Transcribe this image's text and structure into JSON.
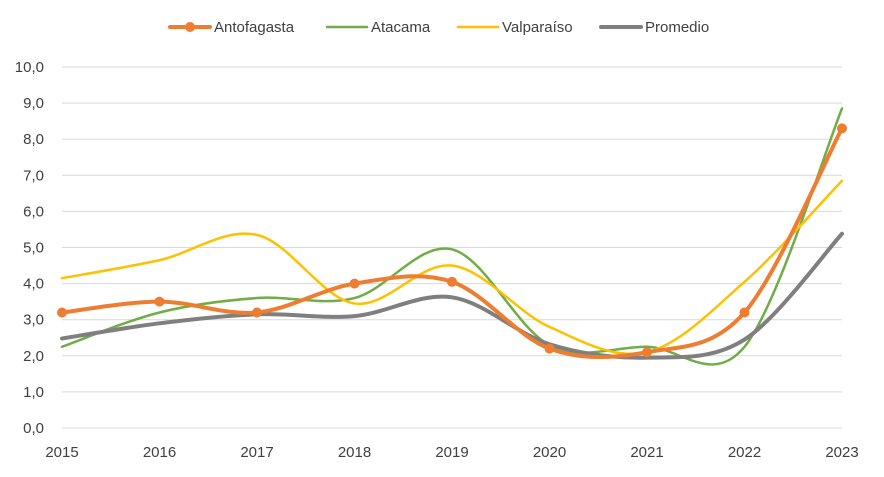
{
  "chart_data": {
    "type": "line",
    "title": "",
    "xlabel": "",
    "ylabel": "",
    "x": [
      "2015",
      "2016",
      "2017",
      "2018",
      "2019",
      "2020",
      "2021",
      "2022",
      "2023"
    ],
    "ylim": [
      0,
      10
    ],
    "yticks": [
      "0,0",
      "1,0",
      "2,0",
      "3,0",
      "4,0",
      "5,0",
      "6,0",
      "7,0",
      "8,0",
      "9,0",
      "10,0"
    ],
    "grid": "horizontal",
    "legend_position": "top-center",
    "smooth": true,
    "series": [
      {
        "name": "Antofagasta",
        "color": "#ED7D31",
        "markers": true,
        "values": [
          3.2,
          3.5,
          3.2,
          4.0,
          4.05,
          2.2,
          2.1,
          3.2,
          8.3
        ]
      },
      {
        "name": "Atacama",
        "color": "#70AD47",
        "markers": false,
        "values": [
          2.25,
          3.2,
          3.6,
          3.6,
          4.95,
          2.3,
          2.25,
          2.25,
          8.85
        ]
      },
      {
        "name": "Valparaíso",
        "color": "#FFC000",
        "markers": false,
        "values": [
          4.15,
          4.65,
          5.35,
          3.45,
          4.5,
          2.8,
          2.1,
          4.05,
          6.85
        ]
      },
      {
        "name": "Promedio",
        "color": "#7F7F7F",
        "markers": false,
        "values": [
          2.48,
          2.9,
          3.15,
          3.1,
          3.62,
          2.32,
          1.95,
          2.45,
          5.38
        ]
      }
    ]
  }
}
